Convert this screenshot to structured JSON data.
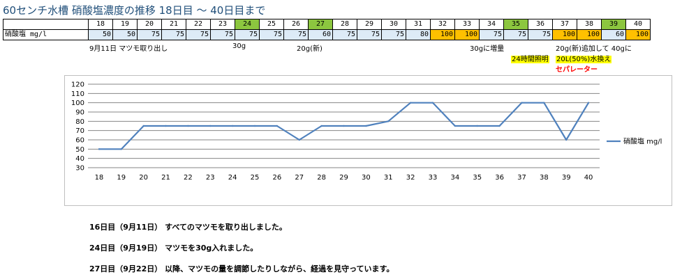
{
  "title": "60センチ水槽 硝酸塩濃度の推移  18日目 ～ 40日目まで",
  "table": {
    "row_label": "硝酸塩 mg/l",
    "days": [
      "18",
      "19",
      "20",
      "21",
      "22",
      "23",
      "24",
      "25",
      "26",
      "27",
      "28",
      "29",
      "30",
      "31",
      "32",
      "33",
      "34",
      "35",
      "36",
      "37",
      "38",
      "39",
      "40"
    ],
    "values": [
      "50",
      "50",
      "75",
      "75",
      "75",
      "75",
      "75",
      "75",
      "75",
      "60",
      "75",
      "75",
      "75",
      "80",
      "100",
      "100",
      "75",
      "75",
      "75",
      "100",
      "100",
      "60",
      "100"
    ],
    "day_highlight_color": "#8cc63f",
    "value_highlight_color": "#ffc000",
    "value_base_color": "#ddebf7"
  },
  "notes": {
    "n1": "9月11日 マツモ取り出し",
    "n2": "30g",
    "n3": "20g(新)",
    "n4": "30gに増量",
    "n5": "20g(新)追加して 40gに",
    "n6": "24時間照明",
    "n7": "20L(50%)水換え",
    "n8": "セパレーター"
  },
  "chart_data": {
    "type": "line",
    "categories": [
      "18",
      "19",
      "20",
      "21",
      "22",
      "23",
      "24",
      "25",
      "26",
      "27",
      "28",
      "29",
      "30",
      "31",
      "32",
      "33",
      "34",
      "35",
      "36",
      "37",
      "38",
      "39",
      "40"
    ],
    "series": [
      {
        "name": "硝酸塩 mg/l",
        "color": "#4f81bd",
        "values": [
          50,
          50,
          75,
          75,
          75,
          75,
          75,
          75,
          75,
          60,
          75,
          75,
          75,
          80,
          100,
          100,
          75,
          75,
          75,
          100,
          100,
          60,
          100
        ]
      }
    ],
    "ylim": [
      30,
      120
    ],
    "yticks": [
      "30",
      "40",
      "50",
      "60",
      "70",
      "80",
      "90",
      "100",
      "110",
      "120"
    ],
    "grid": true,
    "legend": "right"
  },
  "comments": [
    "16日目（9月11日） すべてのマツモを取り出しました。",
    "24日目（9月19日） マツモを30g入れました。",
    "27日目（9月22日） 以降、マツモの量を調節したりしながら、経過を見守っています。"
  ]
}
